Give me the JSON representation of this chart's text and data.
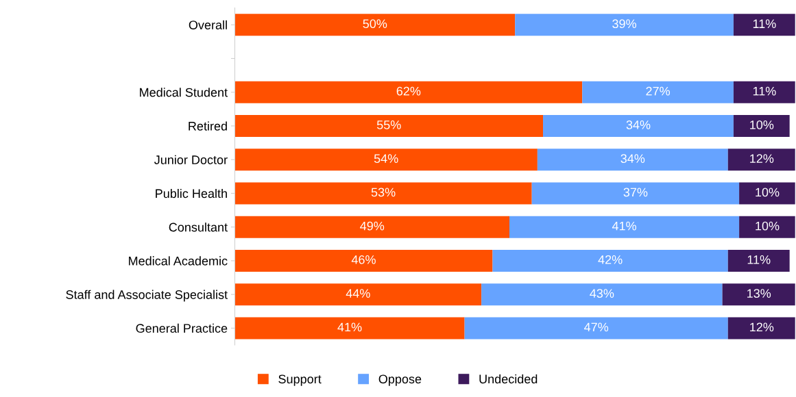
{
  "chart_data": {
    "type": "bar",
    "orientation": "horizontal",
    "stacked": true,
    "categories": [
      "Overall",
      null,
      "Medical Student",
      "Retired",
      "Junior Doctor",
      "Public Health",
      "Consultant",
      "Medical Academic",
      "Staff and Associate Specialist",
      "General Practice"
    ],
    "xlim": [
      0,
      100
    ],
    "tick_labels": "y",
    "grid": false,
    "legend": "bottom",
    "series": [
      {
        "name": "Support",
        "color": "#ff5000",
        "values": [
          50,
          null,
          62,
          55,
          54,
          53,
          49,
          46,
          44,
          41
        ],
        "value_labels": [
          "50%",
          null,
          "62%",
          "55%",
          "54%",
          "53%",
          "49%",
          "46%",
          "44%",
          "41%"
        ]
      },
      {
        "name": "Oppose",
        "color": "#66a3ff",
        "values": [
          39,
          null,
          27,
          34,
          34,
          37,
          41,
          42,
          43,
          47
        ],
        "value_labels": [
          "39%",
          null,
          "27%",
          "34%",
          "34%",
          "37%",
          "41%",
          "42%",
          "43%",
          "47%"
        ]
      },
      {
        "name": "Undecided",
        "color": "#3d1a5c",
        "values": [
          11,
          null,
          11,
          10,
          12,
          10,
          10,
          11,
          13,
          12
        ],
        "value_labels": [
          "11%",
          null,
          "11%",
          "10%",
          "12%",
          "10%",
          "10%",
          "11%",
          "13%",
          "12%"
        ]
      }
    ]
  }
}
